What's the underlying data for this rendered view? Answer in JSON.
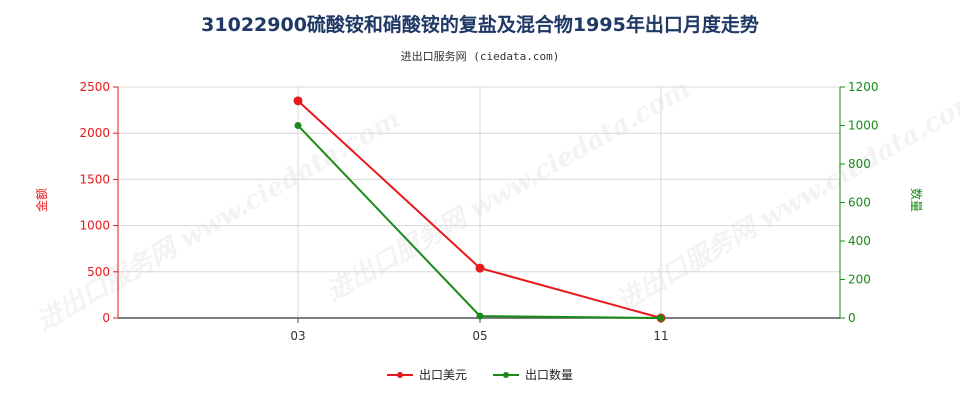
{
  "title": "31022900硫酸铵和硝酸铵的复盐及混合物1995年出口月度走势",
  "subtitle": "进出口服务网 (ciedata.com)",
  "watermark": "进出口服务网 www.ciedata.com",
  "colors": {
    "amount": "#e8191a",
    "quantity": "#1a8a1a",
    "title": "#1f3864",
    "grid": "#d9d9d9"
  },
  "legend": {
    "amount_label": "出口美元",
    "quantity_label": "出口数量"
  },
  "chart_data": {
    "type": "line",
    "title": "31022900硫酸铵和硝酸铵的复盐及混合物1995年出口月度走势",
    "categories": [
      "03",
      "05",
      "11"
    ],
    "y_left": {
      "label": "金额",
      "range": [
        0,
        2500
      ],
      "ticks": [
        0,
        500,
        1000,
        1500,
        2000,
        2500
      ]
    },
    "y_right": {
      "label": "数量",
      "range": [
        0,
        1200
      ],
      "ticks": [
        0,
        200,
        400,
        600,
        800,
        1000,
        1200
      ]
    },
    "series": [
      {
        "name": "出口美元",
        "axis": "left",
        "color": "#e8191a",
        "values": [
          2350,
          540,
          0
        ]
      },
      {
        "name": "出口数量",
        "axis": "right",
        "color": "#1a8a1a",
        "values": [
          1000,
          10,
          0
        ]
      }
    ],
    "grid": true,
    "legend_position": "bottom"
  }
}
